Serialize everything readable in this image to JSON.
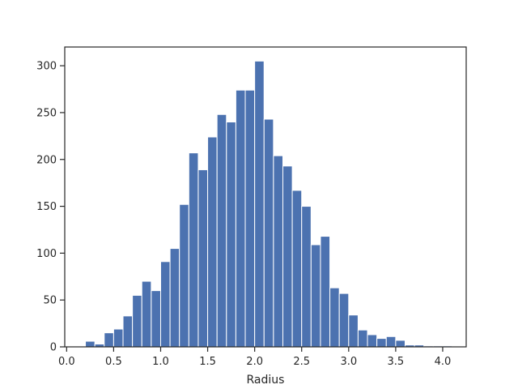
{
  "chart_data": {
    "type": "bar",
    "title": "",
    "xlabel": "Radius",
    "ylabel": "",
    "xlim": [
      -0.02,
      4.25
    ],
    "ylim": [
      0,
      320
    ],
    "grid": false,
    "bar_color": "#4c72b0",
    "bin_width": 0.1,
    "bins": [
      {
        "x0": 0.2,
        "count": 6
      },
      {
        "x0": 0.3,
        "count": 3
      },
      {
        "x0": 0.4,
        "count": 15
      },
      {
        "x0": 0.5,
        "count": 19
      },
      {
        "x0": 0.6,
        "count": 33
      },
      {
        "x0": 0.7,
        "count": 55
      },
      {
        "x0": 0.8,
        "count": 70
      },
      {
        "x0": 0.9,
        "count": 60
      },
      {
        "x0": 1.0,
        "count": 91
      },
      {
        "x0": 1.1,
        "count": 105
      },
      {
        "x0": 1.2,
        "count": 152
      },
      {
        "x0": 1.3,
        "count": 207
      },
      {
        "x0": 1.4,
        "count": 189
      },
      {
        "x0": 1.5,
        "count": 224
      },
      {
        "x0": 1.6,
        "count": 248
      },
      {
        "x0": 1.7,
        "count": 240
      },
      {
        "x0": 1.8,
        "count": 274
      },
      {
        "x0": 1.9,
        "count": 274
      },
      {
        "x0": 2.0,
        "count": 305
      },
      {
        "x0": 2.1,
        "count": 243
      },
      {
        "x0": 2.2,
        "count": 204
      },
      {
        "x0": 2.3,
        "count": 193
      },
      {
        "x0": 2.4,
        "count": 167
      },
      {
        "x0": 2.5,
        "count": 150
      },
      {
        "x0": 2.6,
        "count": 109
      },
      {
        "x0": 2.7,
        "count": 118
      },
      {
        "x0": 2.8,
        "count": 63
      },
      {
        "x0": 2.9,
        "count": 57
      },
      {
        "x0": 3.0,
        "count": 34
      },
      {
        "x0": 3.1,
        "count": 18
      },
      {
        "x0": 3.2,
        "count": 13
      },
      {
        "x0": 3.3,
        "count": 9
      },
      {
        "x0": 3.4,
        "count": 11
      },
      {
        "x0": 3.5,
        "count": 7
      },
      {
        "x0": 3.6,
        "count": 2
      },
      {
        "x0": 3.7,
        "count": 2
      },
      {
        "x0": 3.8,
        "count": 1
      },
      {
        "x0": 3.9,
        "count": 1
      },
      {
        "x0": 4.0,
        "count": 1
      }
    ],
    "x_ticks": [
      "0.0",
      "0.5",
      "1.0",
      "1.5",
      "2.0",
      "2.5",
      "3.0",
      "3.5",
      "4.0"
    ],
    "y_ticks": [
      "0",
      "50",
      "100",
      "150",
      "200",
      "250",
      "300"
    ]
  }
}
